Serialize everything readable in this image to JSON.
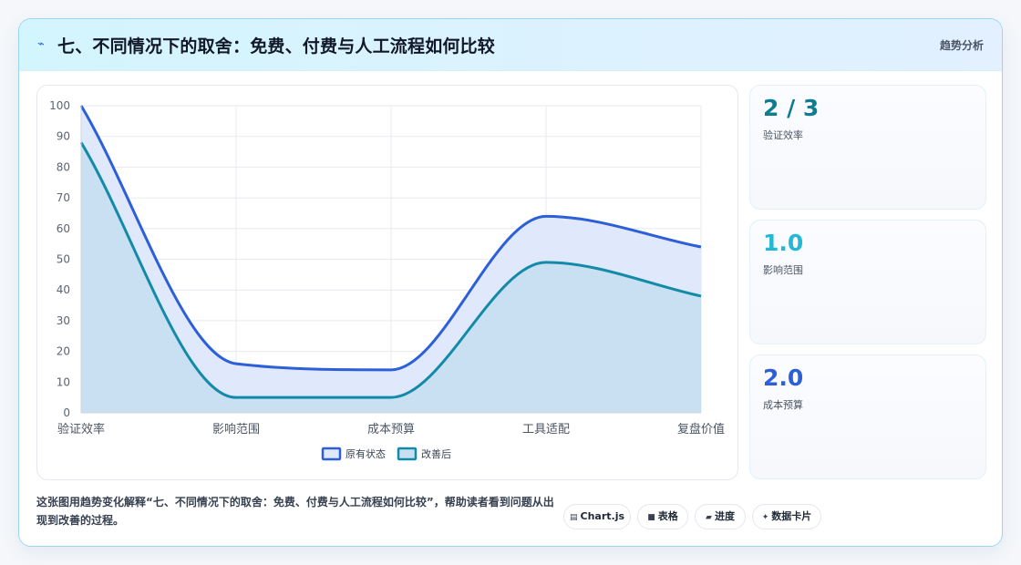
{
  "header": {
    "icon": "lightning-icon",
    "title": "七、不同情况下的取舍：免费、付费与人工流程如何比较",
    "badge": "趋势分析"
  },
  "chart_data": {
    "type": "area",
    "categories": [
      "验证效率",
      "影响范围",
      "成本预算",
      "工具适配",
      "复盘价值"
    ],
    "series": [
      {
        "name": "原有状态",
        "values": [
          100,
          16,
          14,
          64,
          54
        ],
        "color": "#2c5fd8",
        "fill": "#e0e8fb"
      },
      {
        "name": "改善后",
        "values": [
          88,
          5,
          5,
          49,
          38
        ],
        "color": "#138aa8",
        "fill": "#c7dff1"
      }
    ],
    "ylim": [
      0,
      100
    ],
    "yticks": [
      0,
      10,
      20,
      30,
      40,
      50,
      60,
      70,
      80,
      90,
      100
    ],
    "grid": true,
    "legend": "bottom"
  },
  "stats": [
    {
      "value": "2 / 3",
      "label": "验证效率",
      "color": "#0e7c91"
    },
    {
      "value": "1.0",
      "label": "影响范围",
      "color": "#22b8d6"
    },
    {
      "value": "2.0",
      "label": "成本预算",
      "color": "#2c5fd8"
    }
  ],
  "footer": {
    "description": "这张图用趋势变化解释“七、不同情况下的取舍：免费、付费与人工流程如何比较”，帮助读者看到问题从出现到改善的过程。",
    "chips": [
      {
        "icon": "chart-icon",
        "glyph": "▤",
        "label": "Chart.js"
      },
      {
        "icon": "table-icon",
        "glyph": "■",
        "label": "表格"
      },
      {
        "icon": "progress-icon",
        "glyph": "▰",
        "label": "进度"
      },
      {
        "icon": "sparkle-icon",
        "glyph": "✦",
        "label": "数据卡片"
      }
    ]
  }
}
